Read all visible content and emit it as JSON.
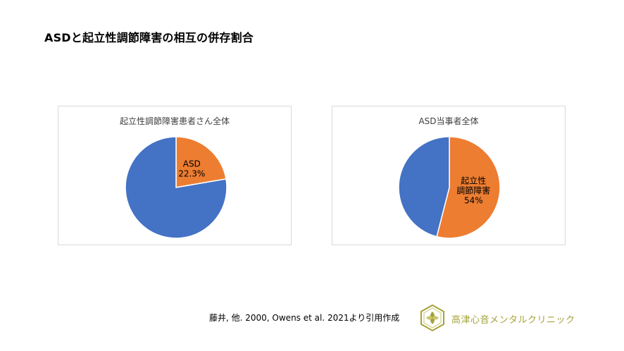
{
  "page": {
    "title": "ASDと起立性調節障害の相互の併存割合",
    "source": "藤井, 他. 2000, Owens et al. 2021より引用作成",
    "clinic_name": "高津心音メンタルクリニック"
  },
  "colors": {
    "blue": "#4472c4",
    "orange": "#ed7d31",
    "logo_green": "#a6a23a"
  },
  "chart_data": [
    {
      "type": "pie",
      "title": "起立性調節障害患者さん全体",
      "slices": [
        {
          "label": "ASD",
          "value": 22.3,
          "color": "#ed7d31",
          "data_label": [
            "ASD",
            "22.3%"
          ]
        },
        {
          "label": "",
          "value": 77.7,
          "color": "#4472c4",
          "data_label": []
        }
      ]
    },
    {
      "type": "pie",
      "title": "ASD当事者全体",
      "slices": [
        {
          "label": "起立性調節障害",
          "value": 54,
          "color": "#ed7d31",
          "data_label": [
            "起立性",
            "調節障害",
            "54%"
          ]
        },
        {
          "label": "",
          "value": 46,
          "color": "#4472c4",
          "data_label": []
        }
      ]
    }
  ]
}
